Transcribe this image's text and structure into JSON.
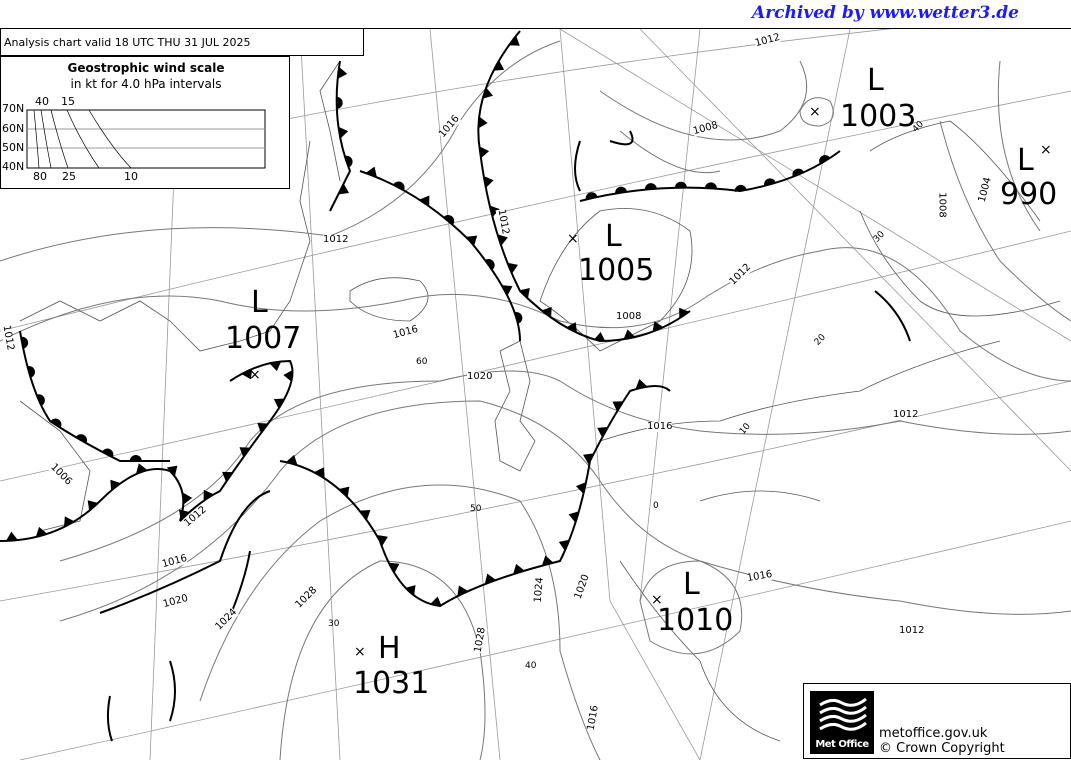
{
  "watermark": "Archived by www.wetter3.de",
  "chart_title": "Analysis chart  valid 18 UTC THU 31  JUL 2025",
  "wind_scale": {
    "title": "Geostrophic wind scale",
    "subtitle": "in kt for 4.0 hPa intervals",
    "lat_labels": [
      "70N",
      "60N",
      "50N",
      "40N"
    ],
    "top_labels": [
      "40",
      "15"
    ],
    "bottom_labels": [
      "80",
      "25",
      "10"
    ]
  },
  "pressure_systems": [
    {
      "type": "L",
      "value": "1003"
    },
    {
      "type": "L",
      "value": "990"
    },
    {
      "type": "L",
      "value": "1005"
    },
    {
      "type": "L",
      "value": "1007"
    },
    {
      "type": "L",
      "value": "1010"
    },
    {
      "type": "H",
      "value": "1031"
    }
  ],
  "isobar_labels": [
    "1012",
    "1008",
    "1016",
    "1012",
    "1012",
    "1016",
    "1020",
    "1016",
    "1008",
    "1012",
    "1012",
    "1008",
    "1004",
    "1006",
    "1012",
    "1016",
    "1020",
    "1024",
    "1028",
    "1024",
    "1020",
    "1028",
    "1016",
    "1016",
    "1012",
    "1012"
  ],
  "graticule_labels": [
    "60",
    "50",
    "40",
    "30",
    "20",
    "10",
    "0",
    "30",
    "40"
  ],
  "footer": {
    "logo_text": "Met Office",
    "url": "metoffice.gov.uk",
    "copyright": "© Crown Copyright"
  },
  "colors": {
    "watermark": "#1a1aff",
    "isobar": "#777777",
    "front": "#000000",
    "coast": "#666666"
  }
}
